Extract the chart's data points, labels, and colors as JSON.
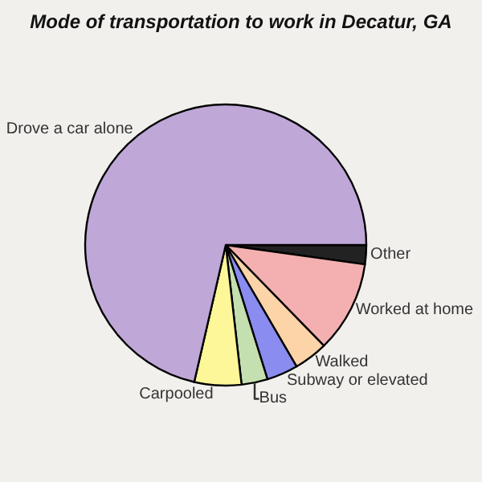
{
  "chart_data": {
    "type": "pie",
    "title": "Mode of transportation to work in Decatur, GA",
    "categories": [
      "Other",
      "Worked at home",
      "Walked",
      "Subway or elevated",
      "Bus",
      "Carpooled",
      "Drove a car alone"
    ],
    "values": [
      2.2,
      10.5,
      3.9,
      3.6,
      3.0,
      5.4,
      71.4
    ],
    "colors": [
      "#222222",
      "#f4b0b0",
      "#fdd3a8",
      "#8a8cf0",
      "#c5e0b0",
      "#fdf799",
      "#bfa8d8"
    ]
  }
}
